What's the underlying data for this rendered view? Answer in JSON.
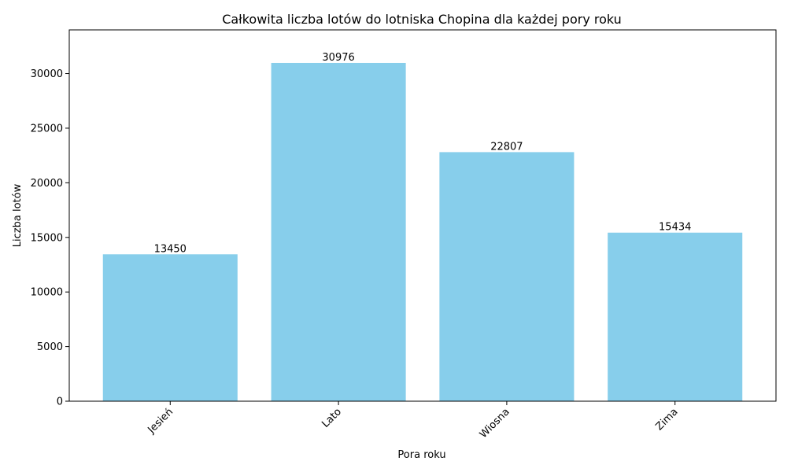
{
  "chart_data": {
    "type": "bar",
    "title": "Całkowita liczba lotów do lotniska Chopina dla każdej pory roku",
    "xlabel": "Pora roku",
    "ylabel": "Liczba lotów",
    "categories": [
      "Jesień",
      "Lato",
      "Wiosna",
      "Zima"
    ],
    "values": [
      13450,
      30976,
      22807,
      15434
    ],
    "ylim": [
      0,
      34000
    ],
    "yticks": [
      0,
      5000,
      10000,
      15000,
      20000,
      25000,
      30000
    ],
    "bar_color": "#87ceeb",
    "grid": false,
    "legend": "none"
  }
}
